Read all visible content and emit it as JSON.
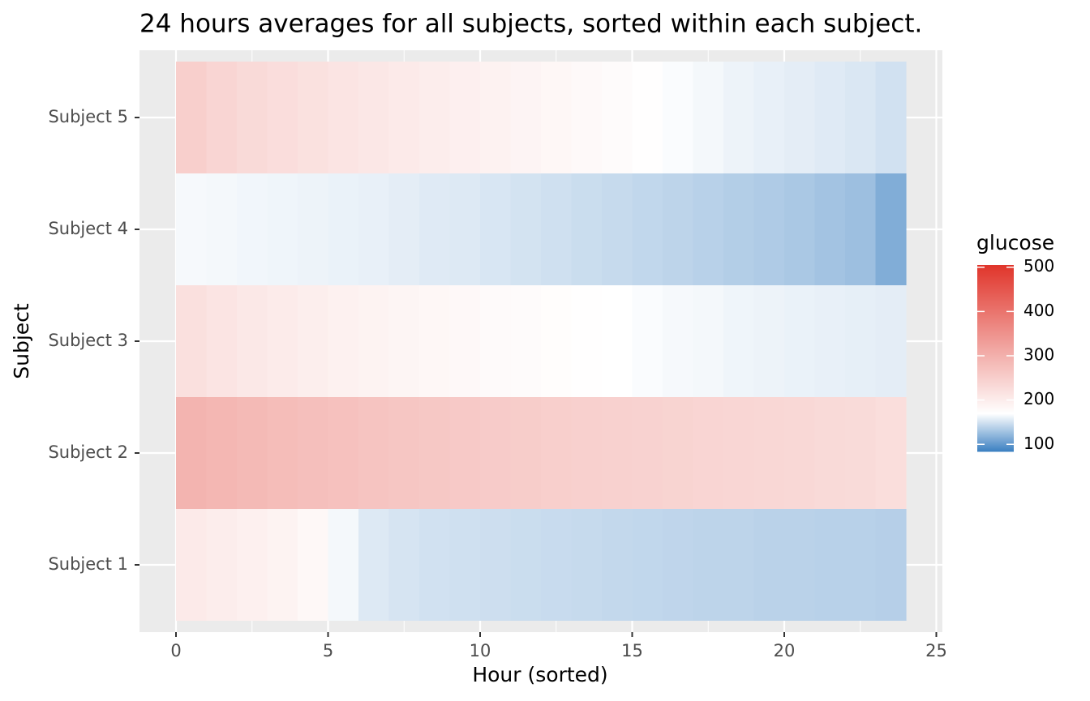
{
  "chart_data": {
    "type": "heatmap",
    "title": "24 hours averages for all subjects, sorted within each subject.",
    "x_label": "Hour (sorted)",
    "y_label": "Subject",
    "categories": [
      "Subject 1",
      "Subject 2",
      "Subject 3",
      "Subject 4",
      "Subject 5"
    ],
    "bins": [
      0,
      1,
      2,
      3,
      4,
      5,
      6,
      7,
      8,
      9,
      10,
      11,
      12,
      13,
      14,
      15,
      16,
      17,
      18,
      19,
      20,
      21,
      22,
      23,
      24
    ],
    "values": [
      [
        205,
        200,
        195,
        190,
        182,
        165,
        155,
        152,
        150,
        149,
        148,
        147,
        146,
        145,
        144,
        143,
        142,
        141,
        141,
        140,
        140,
        139,
        139,
        138
      ],
      [
        295,
        290,
        285,
        280,
        276,
        272,
        268,
        265,
        262,
        259,
        256,
        253,
        250,
        248,
        246,
        244,
        242,
        240,
        238,
        236,
        234,
        232,
        230,
        225
      ],
      [
        222,
        215,
        208,
        203,
        198,
        194,
        190,
        187,
        184,
        181,
        178,
        176,
        174,
        172,
        170,
        168,
        166,
        165,
        163,
        162,
        161,
        160,
        159,
        158
      ],
      [
        166,
        165,
        164,
        163,
        162,
        161,
        160,
        158,
        156,
        155,
        153,
        151,
        149,
        147,
        145,
        143,
        141,
        139,
        137,
        135,
        133,
        130,
        127,
        115
      ],
      [
        250,
        240,
        232,
        226,
        220,
        215,
        210,
        205,
        200,
        196,
        192,
        188,
        184,
        180,
        176,
        172,
        168,
        165,
        162,
        160,
        158,
        156,
        154,
        150
      ]
    ],
    "xlim": [
      -1.2,
      25.2
    ],
    "xticks": [
      0,
      5,
      10,
      15,
      20,
      25
    ],
    "grid": true,
    "legend_title": "glucose",
    "legend_position": "right",
    "color_scale": {
      "low": "#3a7fc1",
      "mid": "#ffffff",
      "high": "#e0352b",
      "midpoint": 170,
      "limits": [
        84,
        505
      ],
      "ticks": [
        100,
        200,
        300,
        400,
        500
      ]
    }
  }
}
